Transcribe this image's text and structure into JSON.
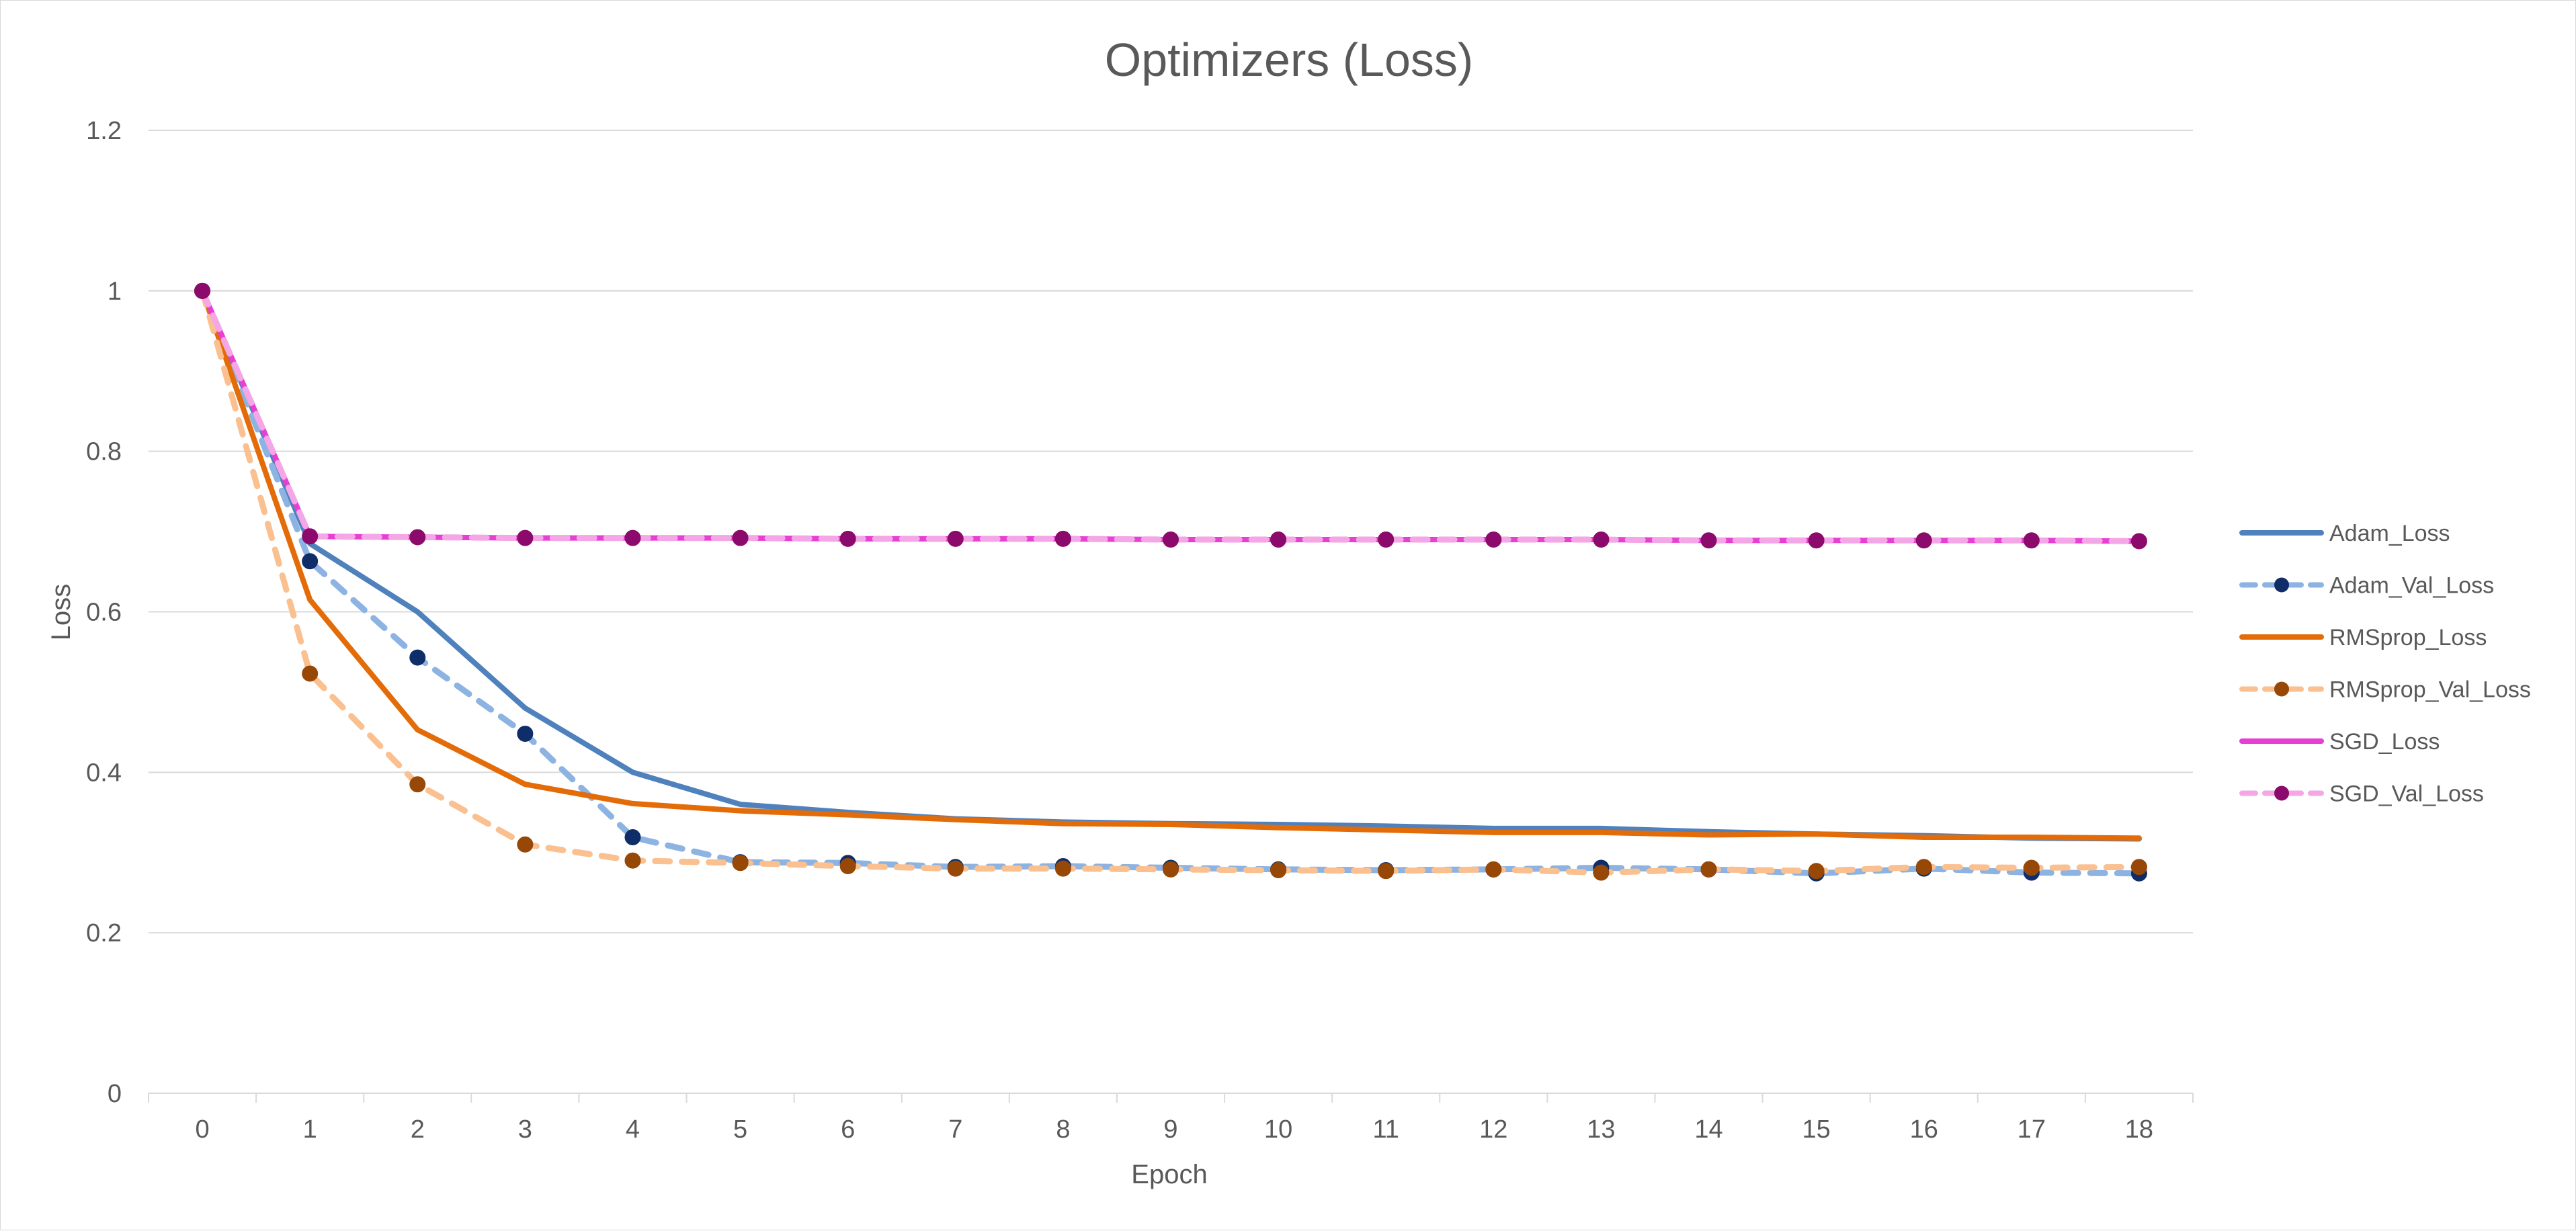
{
  "chart_data": {
    "type": "line",
    "title": "Optimizers (Loss)",
    "xlabel": "Epoch",
    "ylabel": "Loss",
    "xlim": [
      0,
      18
    ],
    "ylim": [
      0,
      1.2
    ],
    "y_ticks": [
      0,
      0.2,
      0.4,
      0.6,
      0.8,
      1,
      1.2
    ],
    "y_tick_labels": [
      "0",
      "0.2",
      "0.4",
      "0.6",
      "0.8",
      "1",
      "1.2"
    ],
    "x": [
      0,
      1,
      2,
      3,
      4,
      5,
      6,
      7,
      8,
      9,
      10,
      11,
      12,
      13,
      14,
      15,
      16,
      17,
      18
    ],
    "x_tick_labels": [
      "0",
      "1",
      "2",
      "3",
      "4",
      "5",
      "6",
      "7",
      "8",
      "9",
      "10",
      "11",
      "12",
      "13",
      "14",
      "15",
      "16",
      "17",
      "18"
    ],
    "grid": true,
    "legend_position": "right",
    "series": [
      {
        "name": "Adam_Loss",
        "style": "solid",
        "markers": false,
        "color": "#4f81bd",
        "values": [
          1.0,
          0.685,
          0.6,
          0.48,
          0.4,
          0.36,
          0.35,
          0.342,
          0.338,
          0.336,
          0.335,
          0.333,
          0.33,
          0.33,
          0.326,
          0.323,
          0.321,
          0.318,
          0.317
        ]
      },
      {
        "name": "Adam_Val_Loss",
        "style": "dashed",
        "markers": true,
        "color": "#8db3e2",
        "marker_color": "#0f2d69",
        "values": [
          1.0,
          0.663,
          0.543,
          0.448,
          0.319,
          0.288,
          0.287,
          0.282,
          0.283,
          0.281,
          0.279,
          0.278,
          0.279,
          0.281,
          0.279,
          0.274,
          0.28,
          0.275,
          0.274
        ]
      },
      {
        "name": "RMSprop_Loss",
        "style": "solid",
        "markers": false,
        "color": "#e36c09",
        "values": [
          1.0,
          0.615,
          0.453,
          0.385,
          0.361,
          0.352,
          0.347,
          0.341,
          0.336,
          0.335,
          0.331,
          0.328,
          0.325,
          0.325,
          0.322,
          0.323,
          0.319,
          0.319,
          0.318
        ]
      },
      {
        "name": "RMSprop_Val_Loss",
        "style": "dashed",
        "markers": true,
        "color": "#fac090",
        "marker_color": "#974806",
        "values": [
          1.0,
          0.523,
          0.385,
          0.31,
          0.29,
          0.287,
          0.283,
          0.28,
          0.28,
          0.279,
          0.278,
          0.277,
          0.279,
          0.275,
          0.279,
          0.277,
          0.282,
          0.281,
          0.282
        ]
      },
      {
        "name": "SGD_Loss",
        "style": "solid",
        "markers": false,
        "color": "#e83fd2",
        "values": [
          1.0,
          0.694,
          0.693,
          0.692,
          0.692,
          0.692,
          0.691,
          0.691,
          0.691,
          0.69,
          0.69,
          0.69,
          0.69,
          0.69,
          0.689,
          0.689,
          0.689,
          0.689,
          0.688
        ]
      },
      {
        "name": "SGD_Val_Loss",
        "style": "dashed",
        "markers": true,
        "color": "#f4a6e6",
        "marker_color": "#8b0a6b",
        "values": [
          1.0,
          0.694,
          0.693,
          0.692,
          0.692,
          0.692,
          0.691,
          0.691,
          0.691,
          0.69,
          0.69,
          0.69,
          0.69,
          0.69,
          0.689,
          0.689,
          0.689,
          0.689,
          0.688
        ]
      }
    ]
  }
}
